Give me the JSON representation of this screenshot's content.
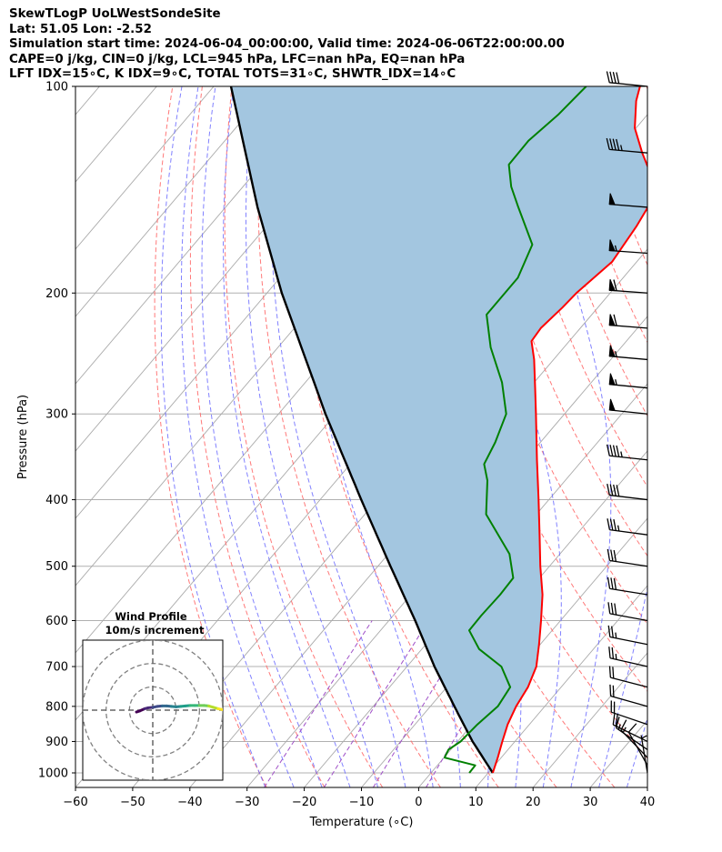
{
  "header": {
    "lines": [
      "SkewTLogP UoLWestSondeSite",
      "Lat: 51.05   Lon: -2.52",
      "Simulation start time: 2024-06-04_00:00:00, Valid time: 2024-06-06T22:00:00.00",
      "CAPE=0 j/kg, CIN=0 j/kg, LCL=945 hPa, LFC=nan hPa, EQ=nan hPa",
      "LFT IDX=15∘C, K IDX=9∘C, TOTAL TOTS=31∘C, SHWTR_IDX=14∘C"
    ]
  },
  "chart_data": {
    "type": "line",
    "chart_kind": "skew-t log-p",
    "xlabel": "Temperature (∘C)",
    "ylabel": "Pressure (hPa)",
    "xlim": [
      -60,
      40
    ],
    "ylim": [
      1050,
      100
    ],
    "y_scale": "log",
    "x_ticks": [
      -60,
      -50,
      -40,
      -30,
      -20,
      -10,
      0,
      10,
      20,
      30,
      40
    ],
    "y_ticks": [
      100,
      200,
      300,
      400,
      500,
      600,
      700,
      800,
      900,
      1000
    ],
    "grid": true,
    "colors": {
      "temperature": "#ff0000",
      "dewpoint": "#008000",
      "parcel": "#000000",
      "fill": "#a3c6e0",
      "dry_adiabat": "#ff6a6a",
      "moist_adiabat": "#6b6bff",
      "mixing_ratio": "#a050c8",
      "isotherm": "#aaaaaa"
    },
    "temperature_profile": [
      {
        "p": 1000,
        "t": 10.8
      },
      {
        "p": 950,
        "t": 9.4
      },
      {
        "p": 900,
        "t": 7.8
      },
      {
        "p": 850,
        "t": 6.2
      },
      {
        "p": 800,
        "t": 5.0
      },
      {
        "p": 750,
        "t": 4.2
      },
      {
        "p": 700,
        "t": 2.6
      },
      {
        "p": 650,
        "t": -0.2
      },
      {
        "p": 600,
        "t": -3.4
      },
      {
        "p": 550,
        "t": -7.0
      },
      {
        "p": 500,
        "t": -11.6
      },
      {
        "p": 450,
        "t": -16.4
      },
      {
        "p": 400,
        "t": -21.8
      },
      {
        "p": 350,
        "t": -28.0
      },
      {
        "p": 300,
        "t": -35.0
      },
      {
        "p": 275,
        "t": -39.0
      },
      {
        "p": 250,
        "t": -43.4
      },
      {
        "p": 235,
        "t": -46.6
      },
      {
        "p": 225,
        "t": -46.9
      },
      {
        "p": 210,
        "t": -46.2
      },
      {
        "p": 200,
        "t": -45.9
      },
      {
        "p": 180,
        "t": -44.3
      },
      {
        "p": 160,
        "t": -45.3
      },
      {
        "p": 145,
        "t": -46.6
      },
      {
        "p": 135,
        "t": -50.2
      },
      {
        "p": 125,
        "t": -55.2
      },
      {
        "p": 115,
        "t": -60.2
      },
      {
        "p": 105,
        "t": -64.0
      },
      {
        "p": 100,
        "t": -65.5
      }
    ],
    "dewpoint_profile": [
      {
        "p": 1000,
        "t": 6.7
      },
      {
        "p": 975,
        "t": 6.6
      },
      {
        "p": 950,
        "t": 0.1
      },
      {
        "p": 925,
        "t": -0.4
      },
      {
        "p": 900,
        "t": 0.5
      },
      {
        "p": 850,
        "t": 0.9
      },
      {
        "p": 800,
        "t": 1.8
      },
      {
        "p": 750,
        "t": 1.1
      },
      {
        "p": 700,
        "t": -3.5
      },
      {
        "p": 660,
        "t": -10.0
      },
      {
        "p": 620,
        "t": -14.5
      },
      {
        "p": 590,
        "t": -14.6
      },
      {
        "p": 550,
        "t": -14.4
      },
      {
        "p": 520,
        "t": -14.6
      },
      {
        "p": 480,
        "t": -18.8
      },
      {
        "p": 420,
        "t": -28.8
      },
      {
        "p": 375,
        "t": -33.6
      },
      {
        "p": 355,
        "t": -36.6
      },
      {
        "p": 330,
        "t": -37.9
      },
      {
        "p": 300,
        "t": -40.2
      },
      {
        "p": 270,
        "t": -45.6
      },
      {
        "p": 240,
        "t": -52.8
      },
      {
        "p": 215,
        "t": -58.4
      },
      {
        "p": 190,
        "t": -58.4
      },
      {
        "p": 170,
        "t": -60.8
      },
      {
        "p": 150,
        "t": -68.8
      },
      {
        "p": 140,
        "t": -73.1
      },
      {
        "p": 130,
        "t": -76.8
      },
      {
        "p": 120,
        "t": -76.9
      },
      {
        "p": 110,
        "t": -75.6
      },
      {
        "p": 100,
        "t": -74.9
      }
    ],
    "parcel_profile": [
      {
        "p": 1000,
        "t": 10.8
      },
      {
        "p": 945,
        "t": 6.4
      },
      {
        "p": 900,
        "t": 2.6
      },
      {
        "p": 850,
        "t": -1.5
      },
      {
        "p": 800,
        "t": -5.8
      },
      {
        "p": 700,
        "t": -15.2
      },
      {
        "p": 600,
        "t": -25.4
      },
      {
        "p": 500,
        "t": -37.8
      },
      {
        "p": 400,
        "t": -52.8
      },
      {
        "p": 300,
        "t": -71.8
      },
      {
        "p": 200,
        "t": -97.4
      },
      {
        "p": 150,
        "t": -114.4
      },
      {
        "p": 100,
        "t": -137.0
      }
    ],
    "wind_barbs": [
      {
        "p": 1000,
        "u": 0.5,
        "v": -3.0
      },
      {
        "p": 975,
        "u": 2.6,
        "v": -4.6
      },
      {
        "p": 950,
        "u": 5.0,
        "v": -5.2
      },
      {
        "p": 925,
        "u": 7.2,
        "v": -5.0
      },
      {
        "p": 900,
        "u": 9.0,
        "v": -4.4
      },
      {
        "p": 850,
        "u": 10.0,
        "v": -3.4
      },
      {
        "p": 800,
        "u": 10.0,
        "v": -2.8
      },
      {
        "p": 750,
        "u": 10.0,
        "v": -2.6
      },
      {
        "p": 700,
        "u": 11.5,
        "v": -2.6
      },
      {
        "p": 650,
        "u": 13.0,
        "v": -2.6
      },
      {
        "p": 600,
        "u": 14.0,
        "v": -2.6
      },
      {
        "p": 550,
        "u": 15.0,
        "v": -2.4
      },
      {
        "p": 500,
        "u": 16.0,
        "v": -2.4
      },
      {
        "p": 450,
        "u": 18.0,
        "v": -2.4
      },
      {
        "p": 400,
        "u": 20.0,
        "v": -2.4
      },
      {
        "p": 350,
        "u": 22.0,
        "v": -2.4
      },
      {
        "p": 300,
        "u": 25.0,
        "v": -2.6
      },
      {
        "p": 275,
        "u": 27.0,
        "v": -2.6
      },
      {
        "p": 250,
        "u": 29.0,
        "v": -2.6
      },
      {
        "p": 225,
        "u": 30.0,
        "v": -2.4
      },
      {
        "p": 200,
        "u": 30.0,
        "v": -2.2
      },
      {
        "p": 175,
        "u": 28.0,
        "v": -2.0
      },
      {
        "p": 150,
        "u": 25.0,
        "v": -2.0
      },
      {
        "p": 125,
        "u": 22.0,
        "v": -2.0
      },
      {
        "p": 100,
        "u": 20.0,
        "v": -2.0
      }
    ],
    "hodograph": {
      "title": "Wind Profile",
      "subtitle": "10m/s increment",
      "ring_step": 10,
      "rings": 3,
      "points": [
        {
          "u": -7.0,
          "v": -0.8
        },
        {
          "u": -5.5,
          "v": -0.3
        },
        {
          "u": -3.5,
          "v": 0.6
        },
        {
          "u": -2.0,
          "v": 1.0
        },
        {
          "u": 0.0,
          "v": 1.2
        },
        {
          "u": 2.0,
          "v": 1.6
        },
        {
          "u": 4.0,
          "v": 1.8
        },
        {
          "u": 6.0,
          "v": 1.8
        },
        {
          "u": 8.0,
          "v": 1.6
        },
        {
          "u": 10.0,
          "v": 1.4
        },
        {
          "u": 12.0,
          "v": 1.6
        },
        {
          "u": 14.0,
          "v": 1.8
        },
        {
          "u": 16.0,
          "v": 2.0
        },
        {
          "u": 18.0,
          "v": 2.0
        },
        {
          "u": 20.0,
          "v": 2.0
        },
        {
          "u": 22.0,
          "v": 2.0
        },
        {
          "u": 24.0,
          "v": 1.8
        },
        {
          "u": 26.0,
          "v": 1.2
        },
        {
          "u": 28.0,
          "v": 0.6
        },
        {
          "u": 30.0,
          "v": 0.2
        }
      ]
    }
  }
}
